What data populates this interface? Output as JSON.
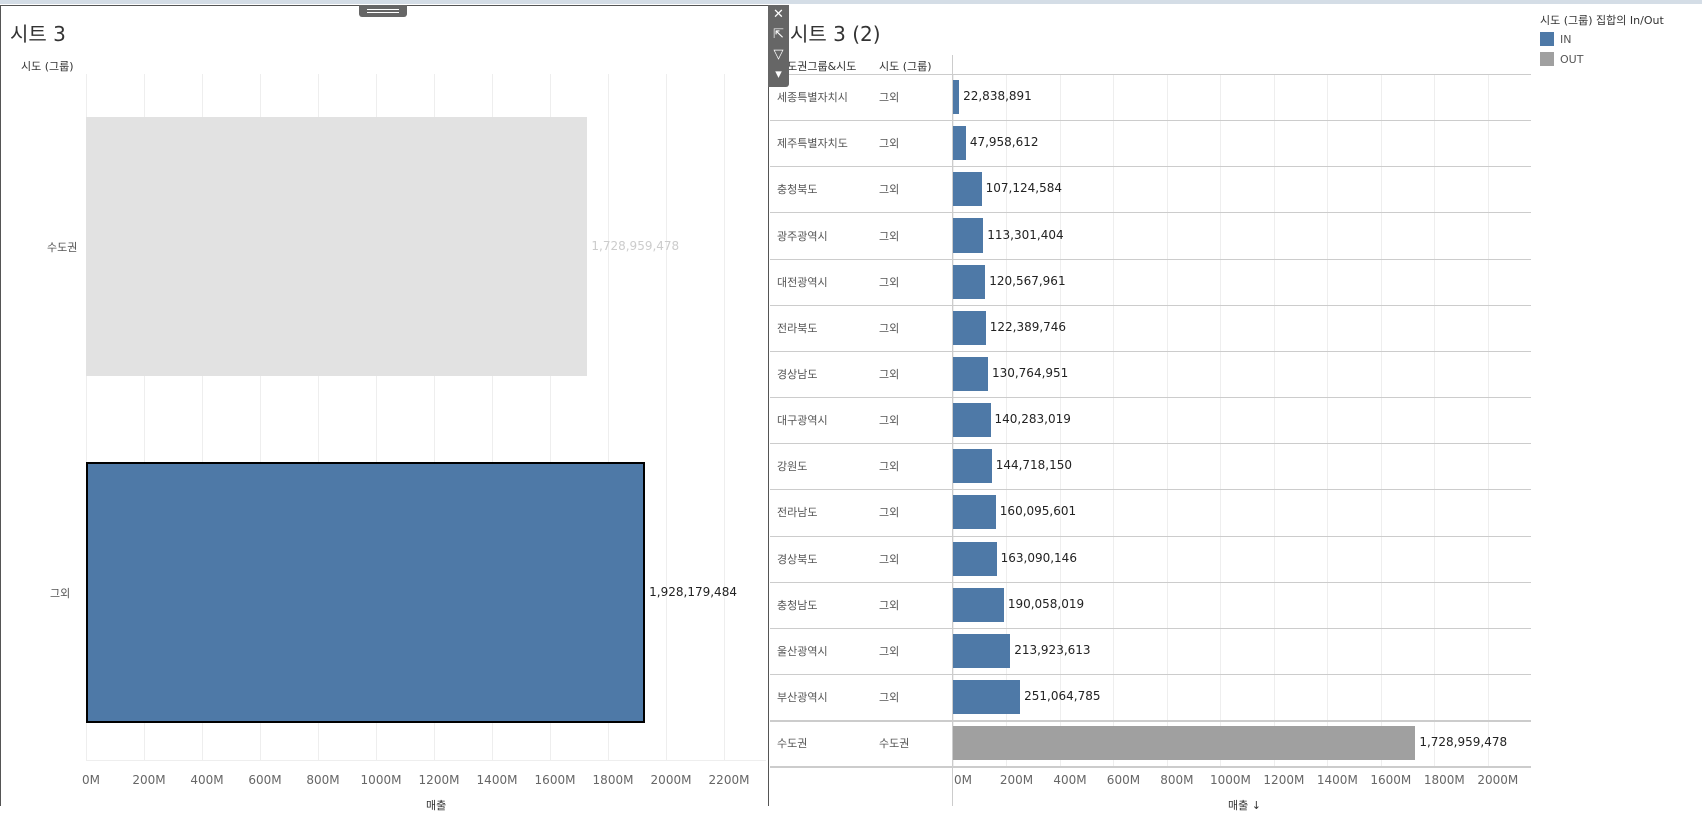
{
  "left_sheet": {
    "title": "시트 3",
    "row_header": "시도 (그룹)",
    "x_axis_title": "매출",
    "ticks": [
      "0M",
      "200M",
      "400M",
      "600M",
      "800M",
      "1000M",
      "1200M",
      "1400M",
      "1600M",
      "1800M",
      "2000M",
      "2200M"
    ],
    "bars": [
      {
        "label": "수도권",
        "value": 1728959478,
        "value_label": "1,728,959,478",
        "group": "OUT",
        "highlighted": false
      },
      {
        "label": "그외",
        "value": 1928179484,
        "value_label": "1,928,179,484",
        "group": "IN",
        "highlighted": true
      }
    ]
  },
  "right_sheet": {
    "title": "시트 3 (2)",
    "col_header_1": "시도권그룹&시도",
    "col_header_2": "시도 (그룹)",
    "x_axis_title": "매출 ↓",
    "ticks": [
      "0M",
      "200M",
      "400M",
      "600M",
      "800M",
      "1000M",
      "1200M",
      "1400M",
      "1600M",
      "1800M",
      "2000M"
    ],
    "rows": [
      {
        "region": "세종특별자치시",
        "group": "그외",
        "value": 22838891,
        "value_label": "22,838,891",
        "set": "IN"
      },
      {
        "region": "제주특별자치도",
        "group": "그외",
        "value": 47958612,
        "value_label": "47,958,612",
        "set": "IN"
      },
      {
        "region": "충청북도",
        "group": "그외",
        "value": 107124584,
        "value_label": "107,124,584",
        "set": "IN"
      },
      {
        "region": "광주광역시",
        "group": "그외",
        "value": 113301404,
        "value_label": "113,301,404",
        "set": "IN"
      },
      {
        "region": "대전광역시",
        "group": "그외",
        "value": 120567961,
        "value_label": "120,567,961",
        "set": "IN"
      },
      {
        "region": "전라북도",
        "group": "그외",
        "value": 122389746,
        "value_label": "122,389,746",
        "set": "IN"
      },
      {
        "region": "경상남도",
        "group": "그외",
        "value": 130764951,
        "value_label": "130,764,951",
        "set": "IN"
      },
      {
        "region": "대구광역시",
        "group": "그외",
        "value": 140283019,
        "value_label": "140,283,019",
        "set": "IN"
      },
      {
        "region": "강원도",
        "group": "그외",
        "value": 144718150,
        "value_label": "144,718,150",
        "set": "IN"
      },
      {
        "region": "전라남도",
        "group": "그외",
        "value": 160095601,
        "value_label": "160,095,601",
        "set": "IN"
      },
      {
        "region": "경상북도",
        "group": "그외",
        "value": 163090146,
        "value_label": "163,090,146",
        "set": "IN"
      },
      {
        "region": "충청남도",
        "group": "그외",
        "value": 190058019,
        "value_label": "190,058,019",
        "set": "IN"
      },
      {
        "region": "울산광역시",
        "group": "그외",
        "value": 213923613,
        "value_label": "213,923,613",
        "set": "IN"
      },
      {
        "region": "부산광역시",
        "group": "그외",
        "value": 251064785,
        "value_label": "251,064,785",
        "set": "IN"
      },
      {
        "region": "수도권",
        "group": "수도권",
        "value": 1728959478,
        "value_label": "1,728,959,478",
        "set": "OUT"
      }
    ]
  },
  "legend": {
    "title": "시도 (그룹) 집합의 In/Out",
    "items": [
      {
        "label": "IN",
        "color": "#4e79a7"
      },
      {
        "label": "OUT",
        "color": "#a0a0a0"
      }
    ]
  },
  "toolbar": {
    "close": "✕",
    "open": "⇱",
    "filter": "▽",
    "menu": "▾"
  }
}
